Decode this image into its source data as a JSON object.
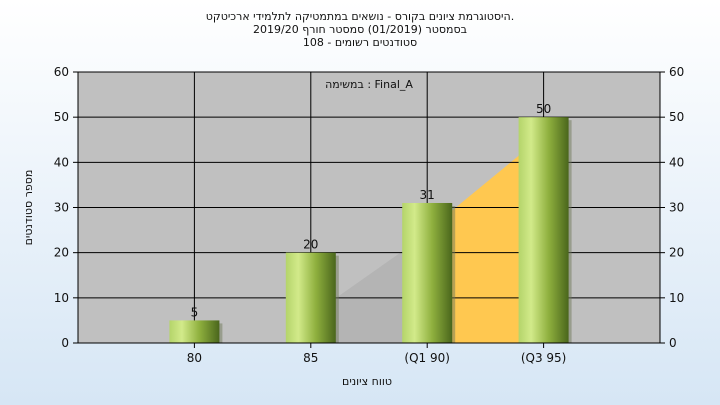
{
  "chart_data": {
    "type": "bar",
    "title_lines": [
      "היסטוגרמת ציונים בקורס - נושאים במתמטיקה לתלמידי ארכיטקט.",
      "בסמסטר  (01/2019)  סמסטר חורף 2019/20",
      "סטודנטים רשומים - 108"
    ],
    "annotation": "במשימה : Final_A",
    "xlabel": "טווח ציונים",
    "ylabel": "מספר סטודנטים",
    "ylim": [
      0,
      60
    ],
    "yticks": [
      0,
      10,
      20,
      30,
      40,
      50,
      60
    ],
    "categories": [
      "80",
      "85",
      "(Q1 90)",
      "(Q3 95)"
    ],
    "values": [
      5,
      20,
      31,
      50
    ],
    "grid": true,
    "colors": {
      "plot_bg": "#c0c0c0",
      "bar_light": "#c6e07a",
      "bar_dark": "#4d6a1e",
      "iqr_band": "#ffc850",
      "gray_band": "#b4b4b4"
    }
  }
}
